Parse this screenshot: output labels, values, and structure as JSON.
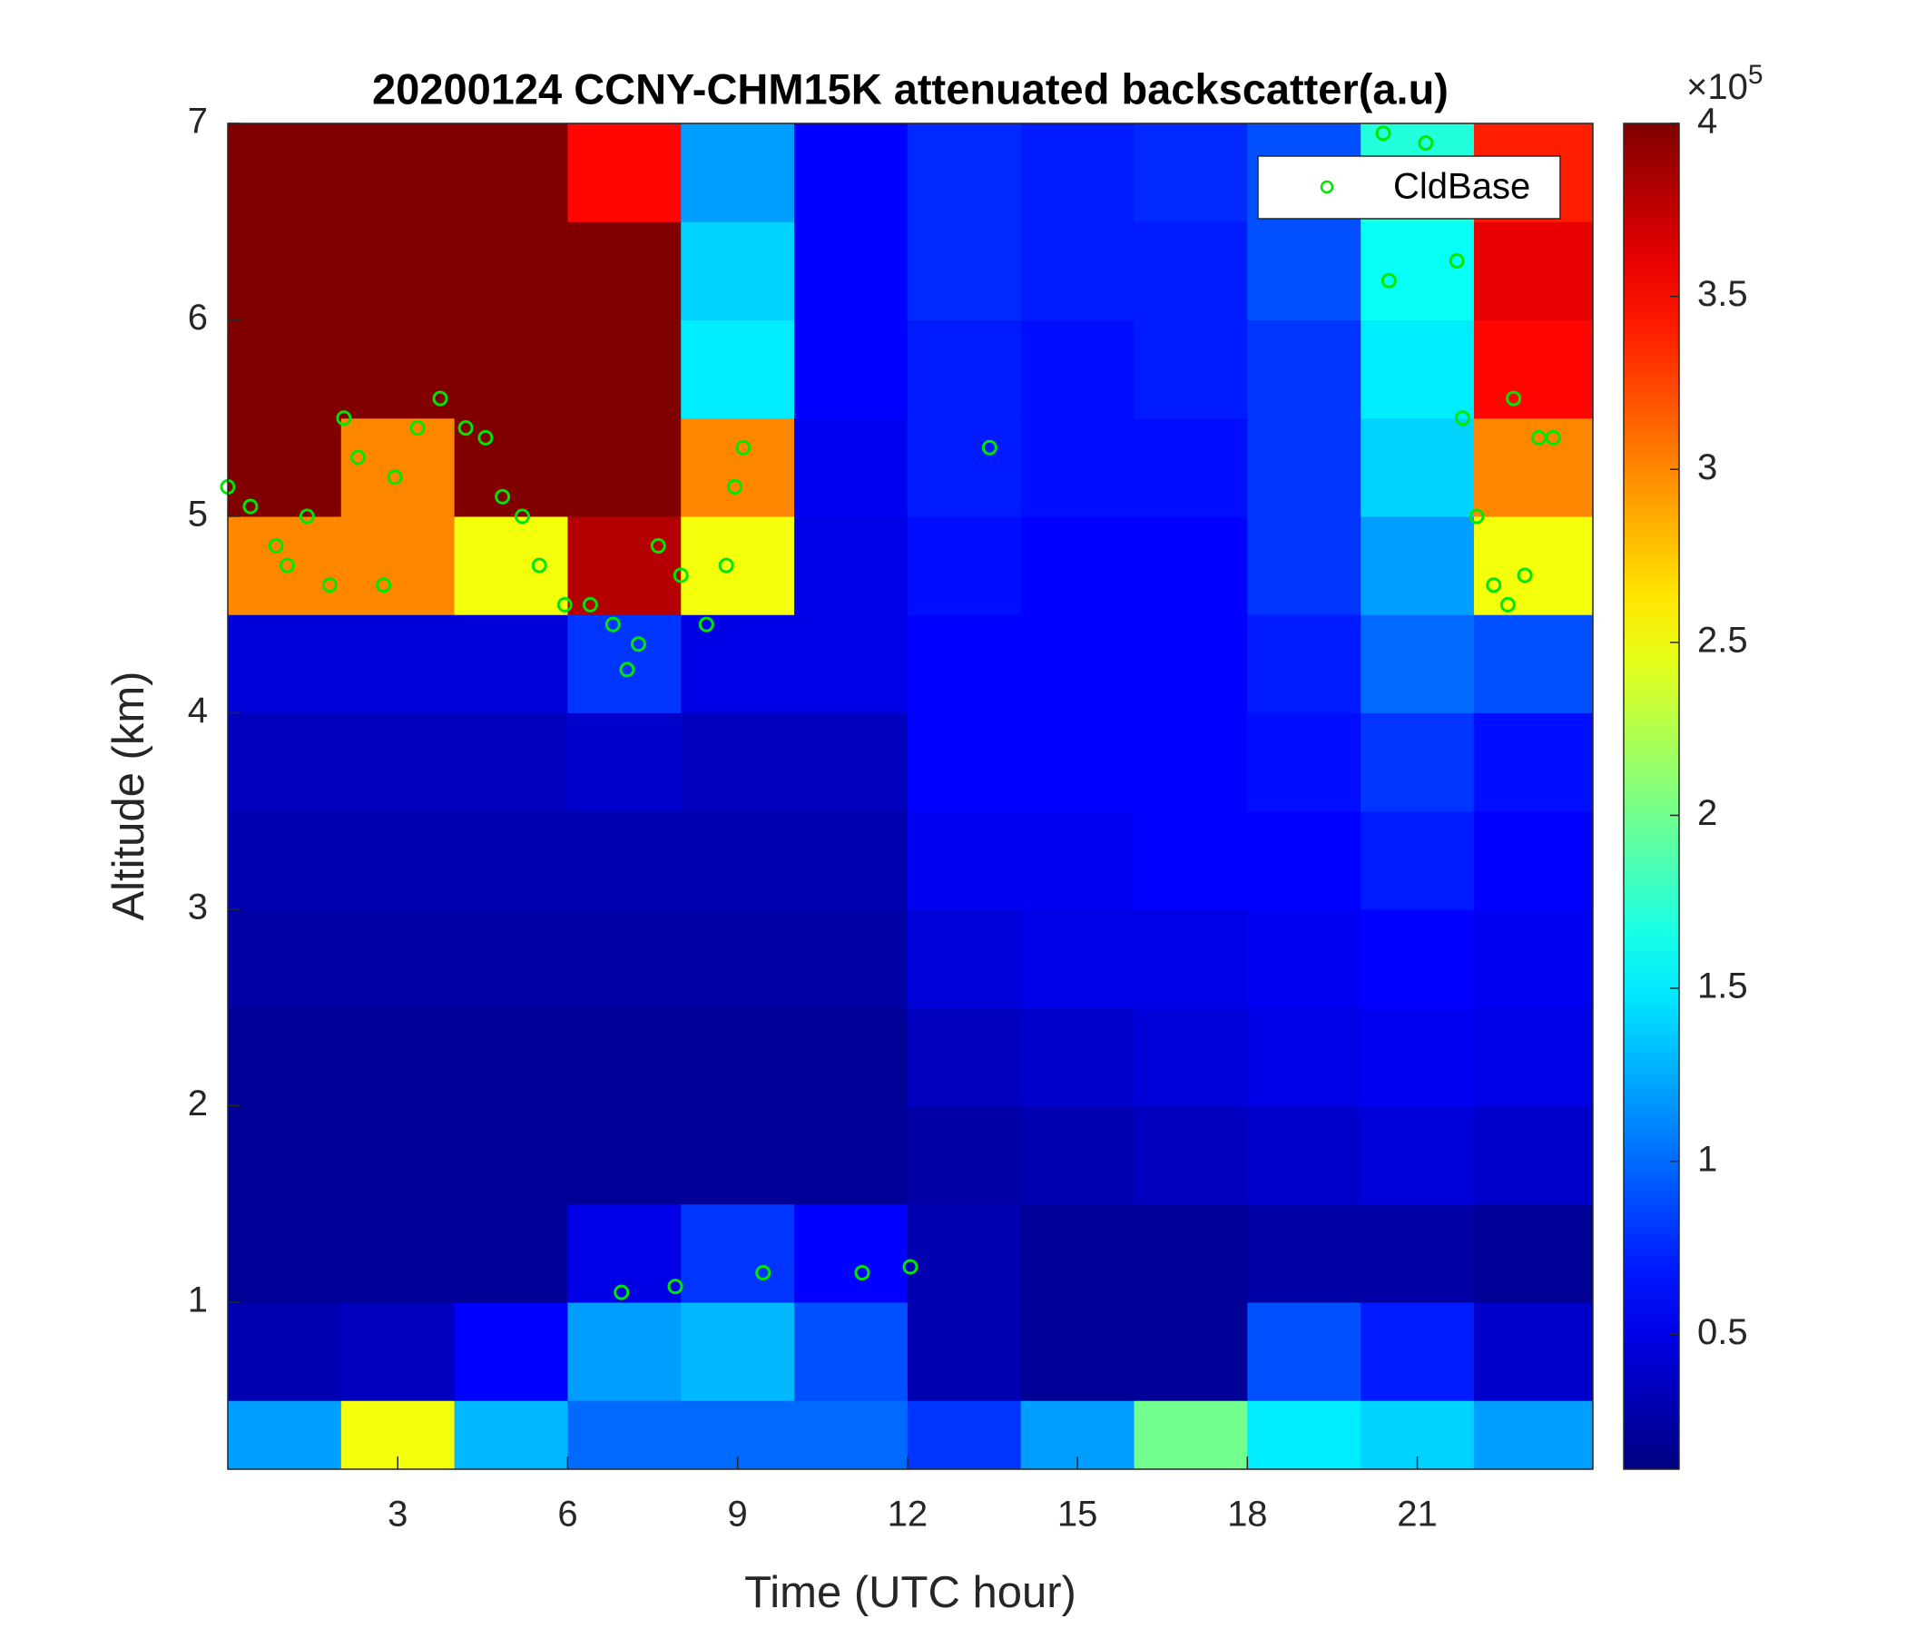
{
  "chart_data": {
    "type": "heatmap",
    "title": "20200124 CCNY-CHM15K attenuated backscatter(a.u)",
    "xlabel": "Time (UTC hour)",
    "ylabel": "Altitude (km)",
    "xlim": [
      0,
      24.1
    ],
    "ylim": [
      0.15,
      7
    ],
    "xticks": [
      3,
      6,
      9,
      12,
      15,
      18,
      21
    ],
    "yticks": [
      1,
      2,
      3,
      4,
      5,
      6,
      7
    ],
    "clim": [
      0.11,
      4
    ],
    "cticks": [
      0.5,
      1,
      1.5,
      2,
      2.5,
      3,
      3.5,
      4
    ],
    "clabel_base": "×10",
    "clabel_exponent": "5",
    "colormap": "jet",
    "legend": "top-right",
    "x_edges": [
      0,
      2,
      4,
      6,
      8,
      10,
      12,
      14,
      16,
      18,
      20,
      22,
      24.1
    ],
    "y_edges": [
      0.15,
      0.5,
      1,
      1.5,
      2,
      2.5,
      3,
      3.5,
      4,
      4.5,
      5,
      5.5,
      6,
      6.5,
      7
    ],
    "z": [
      [
        1.2,
        2.5,
        1.3,
        1.0,
        1.0,
        1.0,
        0.8,
        1.2,
        2.0,
        1.5,
        1.4,
        1.2
      ],
      [
        0.3,
        0.35,
        0.6,
        1.2,
        1.3,
        0.9,
        0.3,
        0.2,
        0.2,
        0.9,
        0.7,
        0.4
      ],
      [
        0.2,
        0.2,
        0.2,
        0.5,
        0.8,
        0.6,
        0.3,
        0.2,
        0.2,
        0.25,
        0.25,
        0.2
      ],
      [
        0.2,
        0.2,
        0.2,
        0.2,
        0.2,
        0.2,
        0.25,
        0.3,
        0.35,
        0.4,
        0.45,
        0.4
      ],
      [
        0.2,
        0.2,
        0.2,
        0.2,
        0.2,
        0.2,
        0.35,
        0.4,
        0.45,
        0.5,
        0.55,
        0.5
      ],
      [
        0.25,
        0.25,
        0.25,
        0.25,
        0.25,
        0.25,
        0.45,
        0.5,
        0.5,
        0.55,
        0.6,
        0.55
      ],
      [
        0.3,
        0.3,
        0.3,
        0.3,
        0.3,
        0.3,
        0.55,
        0.55,
        0.6,
        0.6,
        0.7,
        0.6
      ],
      [
        0.35,
        0.35,
        0.35,
        0.4,
        0.35,
        0.35,
        0.6,
        0.6,
        0.6,
        0.65,
        0.8,
        0.65
      ],
      [
        0.45,
        0.45,
        0.45,
        0.8,
        0.5,
        0.5,
        0.6,
        0.6,
        0.6,
        0.7,
        1.0,
        0.9
      ],
      [
        3.0,
        3.0,
        2.5,
        3.8,
        2.5,
        0.5,
        0.65,
        0.6,
        0.6,
        0.8,
        1.2,
        2.5
      ],
      [
        4,
        3,
        4,
        4,
        3.0,
        0.55,
        0.7,
        0.65,
        0.65,
        0.8,
        1.4,
        3.0
      ],
      [
        4,
        4,
        4,
        4,
        1.5,
        0.6,
        0.7,
        0.65,
        0.7,
        0.8,
        1.5,
        3.5
      ],
      [
        4,
        4,
        4,
        4,
        1.4,
        0.6,
        0.75,
        0.7,
        0.7,
        0.9,
        1.6,
        3.6
      ],
      [
        4,
        4,
        4,
        3.5,
        1.2,
        0.6,
        0.75,
        0.7,
        0.75,
        0.9,
        1.7,
        3.4
      ]
    ],
    "series": [
      {
        "name": "CldBase",
        "color": "#00e600",
        "x": [
          0.0,
          0.4,
          0.85,
          1.05,
          1.4,
          1.8,
          2.05,
          2.3,
          2.75,
          2.95,
          3.35,
          3.75,
          4.2,
          4.55,
          4.85,
          5.2,
          5.5,
          5.95,
          6.4,
          6.8,
          7.05,
          7.25,
          7.6,
          8.0,
          8.45,
          8.8,
          8.95,
          9.1,
          13.45,
          6.95,
          7.9,
          9.45,
          11.2,
          12.05,
          20.4,
          20.5,
          21.15,
          21.7,
          21.8,
          22.05,
          22.35,
          22.6,
          22.7,
          22.9,
          23.15,
          23.4
        ],
        "y": [
          5.15,
          5.05,
          4.85,
          4.75,
          5.0,
          4.65,
          5.5,
          5.3,
          4.65,
          5.2,
          5.45,
          5.6,
          5.45,
          5.4,
          5.1,
          5.0,
          4.75,
          4.55,
          4.55,
          4.45,
          4.22,
          4.35,
          4.85,
          4.7,
          4.45,
          4.75,
          5.15,
          5.35,
          5.35,
          1.05,
          1.08,
          1.15,
          1.15,
          1.18,
          6.95,
          6.2,
          6.9,
          6.3,
          5.5,
          5.0,
          4.65,
          4.55,
          5.6,
          4.7,
          5.4,
          5.4
        ]
      }
    ]
  }
}
